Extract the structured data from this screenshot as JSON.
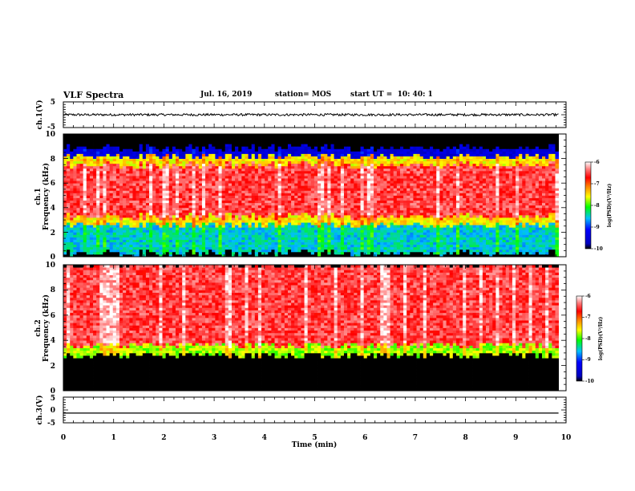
{
  "header": {
    "title": "VLF Spectra",
    "date": "Jul. 16, 2019",
    "station": "station= MOS",
    "start": "start UT =  10: 40: 1"
  },
  "chart_data": [
    {
      "type": "line",
      "name": "ch1-waveform",
      "ylabel": "ch.1(V)",
      "ylim": [
        -5,
        5
      ],
      "yticks": [
        "5",
        "-5"
      ],
      "x_range_min": [
        0,
        9.85
      ],
      "approx_level_V": 0
    },
    {
      "type": "heatmap",
      "name": "ch1-spectrogram",
      "ylabel": "ch.1\nFrequency (kHz)",
      "ylim": [
        0,
        10
      ],
      "yticks": [
        "0",
        "2",
        "4",
        "6",
        "8",
        "10"
      ],
      "x_range_min": [
        0,
        9.85
      ],
      "bands_khz": [
        {
          "from": 0,
          "to": 0.3,
          "level": "black"
        },
        {
          "from": 0.3,
          "to": 2.6,
          "level": "-8.5"
        },
        {
          "from": 2.6,
          "to": 3.3,
          "level": "-7.5"
        },
        {
          "from": 3.3,
          "to": 7.5,
          "level": "-6.5"
        },
        {
          "from": 7.5,
          "to": 8.2,
          "level": "-7.5"
        },
        {
          "from": 8.2,
          "to": 8.9,
          "level": "-9.5"
        },
        {
          "from": 8.9,
          "to": 10,
          "level": "black"
        }
      ],
      "colorbar": {
        "label": "log(PSD)(V²/Hz)",
        "ticks": [
          "-6",
          "-7",
          "-8",
          "-9",
          "-10"
        ],
        "range": [
          -10,
          -6
        ]
      }
    },
    {
      "type": "heatmap",
      "name": "ch2-spectrogram",
      "ylabel": "ch.2\nFrequency (kHz)",
      "ylim": [
        0,
        10
      ],
      "yticks": [
        "0",
        "2",
        "4",
        "6",
        "8",
        "10"
      ],
      "x_range_min": [
        0,
        9.85
      ],
      "bands_khz": [
        {
          "from": 0,
          "to": 2.8,
          "level": "black"
        },
        {
          "from": 2.8,
          "to": 3.6,
          "level": "-7.8"
        },
        {
          "from": 3.6,
          "to": 10,
          "level": "-6.5"
        }
      ],
      "colorbar": {
        "label": "log(PSD)(V²/Hz)",
        "ticks": [
          "-6",
          "-7",
          "-8",
          "-9",
          "-10"
        ],
        "range": [
          -10,
          -6
        ]
      }
    },
    {
      "type": "line",
      "name": "ch3-waveform",
      "ylabel": "ch.3(V)",
      "ylim": [
        -5,
        5
      ],
      "yticks": [
        "5",
        "0",
        "-5"
      ],
      "x_range_min": [
        0,
        9.85
      ],
      "approx_level_V": -1.2
    }
  ],
  "xaxis": {
    "label": "Time (min)",
    "ticks": [
      "0",
      "1",
      "2",
      "3",
      "4",
      "5",
      "6",
      "7",
      "8",
      "9",
      "10"
    ],
    "range": [
      0,
      10
    ]
  },
  "colors": {
    "black": "#000000",
    "blue": "#0000ff",
    "cyan": "#00ffff",
    "green": "#00ff00",
    "yellow": "#ffff00",
    "red": "#ff0000",
    "white": "#ffffff"
  }
}
